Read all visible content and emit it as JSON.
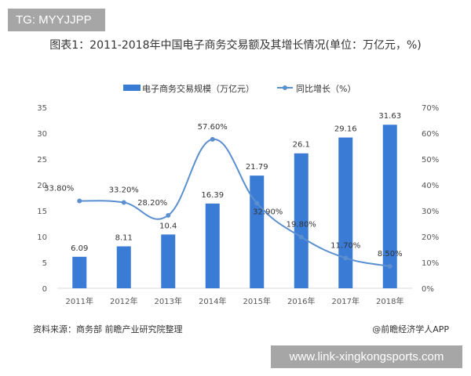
{
  "watermark_tag": "TG: MYYJJPP",
  "footer": {
    "source": "资料来源：商务部 前瞻产业研究院整理",
    "credit": "@前瞻经济学人APP",
    "url": "www.link-xingkongsports.com"
  },
  "chart_data": {
    "type": "bar+line",
    "title": "图表1：2011-2018年中国电子商务交易额及其增长情况(单位：万亿元，%)",
    "categories": [
      "2011年",
      "2012年",
      "2013年",
      "2014年",
      "2015年",
      "2016年",
      "2017年",
      "2018年"
    ],
    "series": [
      {
        "name": "电子商务交易规模（万亿元）",
        "type": "bar",
        "axis": "left",
        "color": "#3a7bd5",
        "values": [
          6.09,
          8.11,
          10.4,
          16.39,
          21.79,
          26.1,
          29.16,
          31.63
        ],
        "labels": [
          "6.09",
          "8.11",
          "10.4",
          "16.39",
          "21.79",
          "26.1",
          "29.16",
          "31.63"
        ]
      },
      {
        "name": "同比增长（%）",
        "type": "line",
        "axis": "right",
        "color": "#5b8fd0",
        "values": [
          33.8,
          33.2,
          28.2,
          57.6,
          32.9,
          19.8,
          11.7,
          8.5
        ],
        "labels": [
          "33.80%",
          "33.20%",
          "28.20%",
          "57.60%",
          "32.90%",
          "19.80%",
          "11.70%",
          "8.50%"
        ]
      }
    ],
    "y_left": {
      "ylim": [
        0,
        35
      ],
      "ticks": [
        "0",
        "5",
        "10",
        "15",
        "20",
        "25",
        "30",
        "35"
      ]
    },
    "y_right": {
      "ylim": [
        0,
        70
      ],
      "ticks": [
        "0%",
        "10%",
        "20%",
        "30%",
        "40%",
        "50%",
        "60%",
        "70%"
      ]
    },
    "legend": "top-center",
    "grid": false
  }
}
